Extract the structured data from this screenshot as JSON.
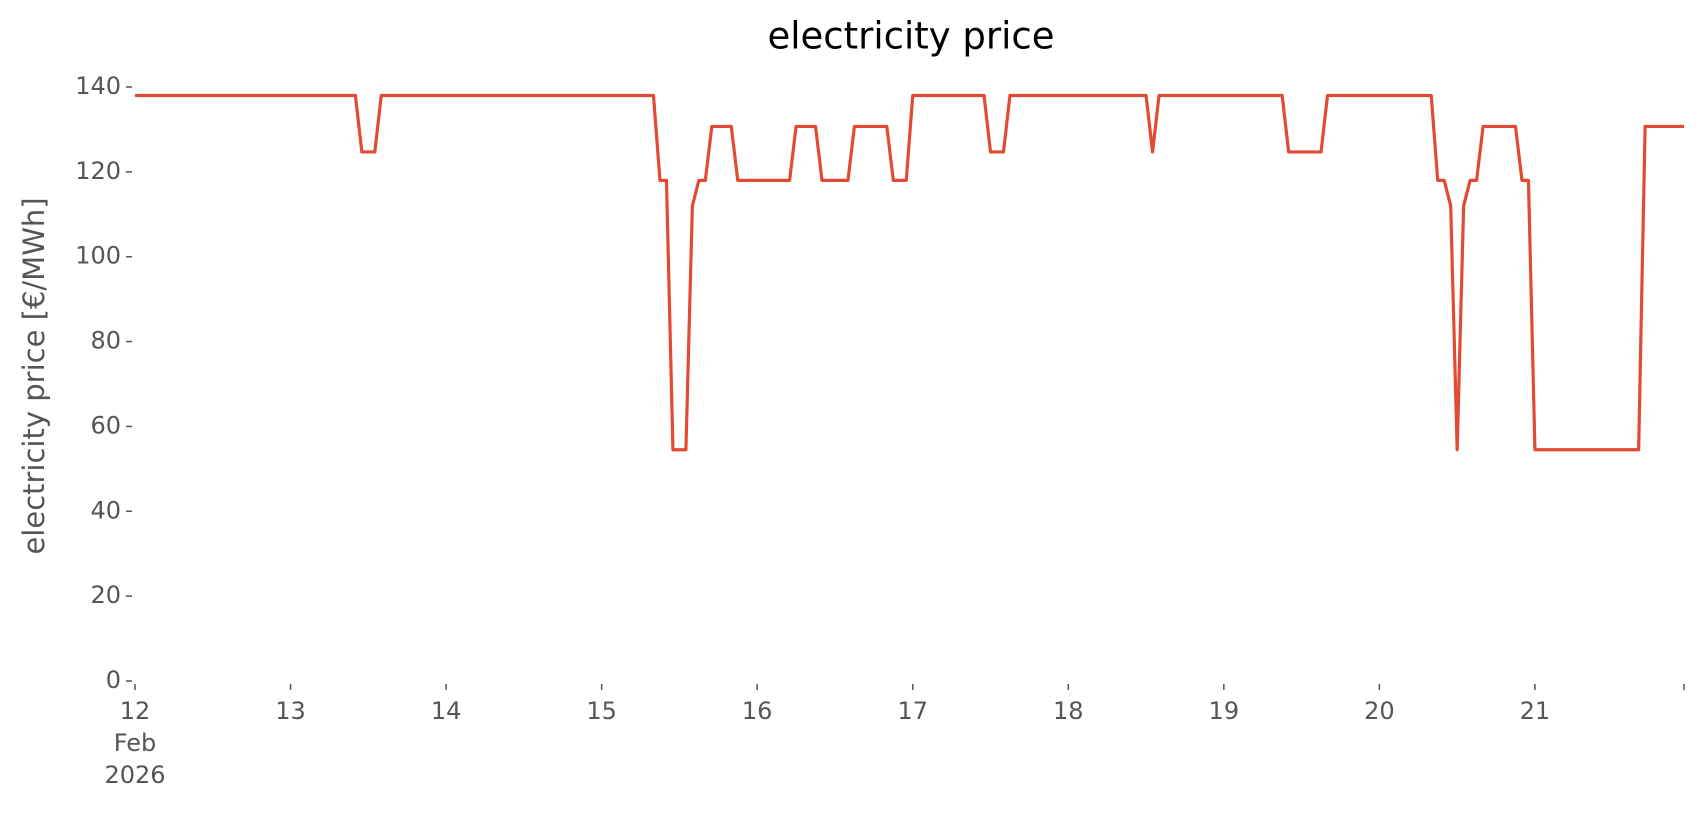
{
  "chart_data": {
    "type": "line",
    "title": "electricity price",
    "ylabel": "electricity price [€/MWh]",
    "x": [
      "2026-02-12T00:00",
      "2026-02-13T10:00",
      "2026-02-13T11:00",
      "2026-02-13T13:00",
      "2026-02-13T14:00",
      "2026-02-15T08:00",
      "2026-02-15T09:00",
      "2026-02-15T10:00",
      "2026-02-15T11:00",
      "2026-02-15T13:00",
      "2026-02-15T14:00",
      "2026-02-15T15:00",
      "2026-02-15T16:00",
      "2026-02-15T17:00",
      "2026-02-15T20:00",
      "2026-02-15T21:00",
      "2026-02-16T05:00",
      "2026-02-16T06:00",
      "2026-02-16T09:00",
      "2026-02-16T10:00",
      "2026-02-16T14:00",
      "2026-02-16T15:00",
      "2026-02-16T20:00",
      "2026-02-16T21:00",
      "2026-02-16T23:00",
      "2026-02-17T00:00",
      "2026-02-17T11:00",
      "2026-02-17T12:00",
      "2026-02-17T14:00",
      "2026-02-17T15:00",
      "2026-02-18T12:00",
      "2026-02-18T13:00",
      "2026-02-18T14:00",
      "2026-02-19T09:00",
      "2026-02-19T10:00",
      "2026-02-19T15:00",
      "2026-02-19T16:00",
      "2026-02-20T08:00",
      "2026-02-20T09:00",
      "2026-02-20T10:00",
      "2026-02-20T11:00",
      "2026-02-20T12:00",
      "2026-02-20T13:00",
      "2026-02-20T14:00",
      "2026-02-20T15:00",
      "2026-02-20T16:00",
      "2026-02-20T21:00",
      "2026-02-20T22:00",
      "2026-02-20T23:00",
      "2026-02-21T00:00",
      "2026-02-21T16:00",
      "2026-02-21T17:00",
      "2026-02-21T23:00"
    ],
    "series": [
      {
        "name": "electricity price",
        "color": "#e24a33",
        "values": [
          138,
          138,
          124.7,
          124.7,
          138,
          138,
          118,
          118,
          54.5,
          54.5,
          112,
          118,
          118,
          130.7,
          130.7,
          118,
          118,
          130.7,
          130.7,
          118,
          118,
          130.7,
          130.7,
          118,
          118,
          138,
          138,
          124.7,
          124.7,
          138,
          138,
          124.7,
          138,
          138,
          124.7,
          124.7,
          138,
          138,
          118,
          118,
          112,
          54.5,
          112,
          118,
          118,
          130.7,
          130.7,
          118,
          118,
          54.5,
          54.5,
          130.7,
          130.7
        ]
      }
    ],
    "xlim": [
      "2026-02-12T00:00",
      "2026-02-21T23:00"
    ],
    "xticks": [
      {
        "value": "2026-02-12T00:00",
        "label": "12\nFeb\n2026"
      },
      {
        "value": "2026-02-13T00:00",
        "label": "13"
      },
      {
        "value": "2026-02-14T00:00",
        "label": "14"
      },
      {
        "value": "2026-02-15T00:00",
        "label": "15"
      },
      {
        "value": "2026-02-16T00:00",
        "label": "16"
      },
      {
        "value": "2026-02-17T00:00",
        "label": "17"
      },
      {
        "value": "2026-02-18T00:00",
        "label": "18"
      },
      {
        "value": "2026-02-19T00:00",
        "label": "19"
      },
      {
        "value": "2026-02-20T00:00",
        "label": "20"
      },
      {
        "value": "2026-02-21T00:00",
        "label": "21"
      },
      {
        "value": "2026-02-21T23:00",
        "label": null
      }
    ],
    "ylim": [
      0,
      140
    ],
    "yticks": [
      0,
      20,
      40,
      60,
      80,
      100,
      120,
      140
    ],
    "grid": false
  }
}
